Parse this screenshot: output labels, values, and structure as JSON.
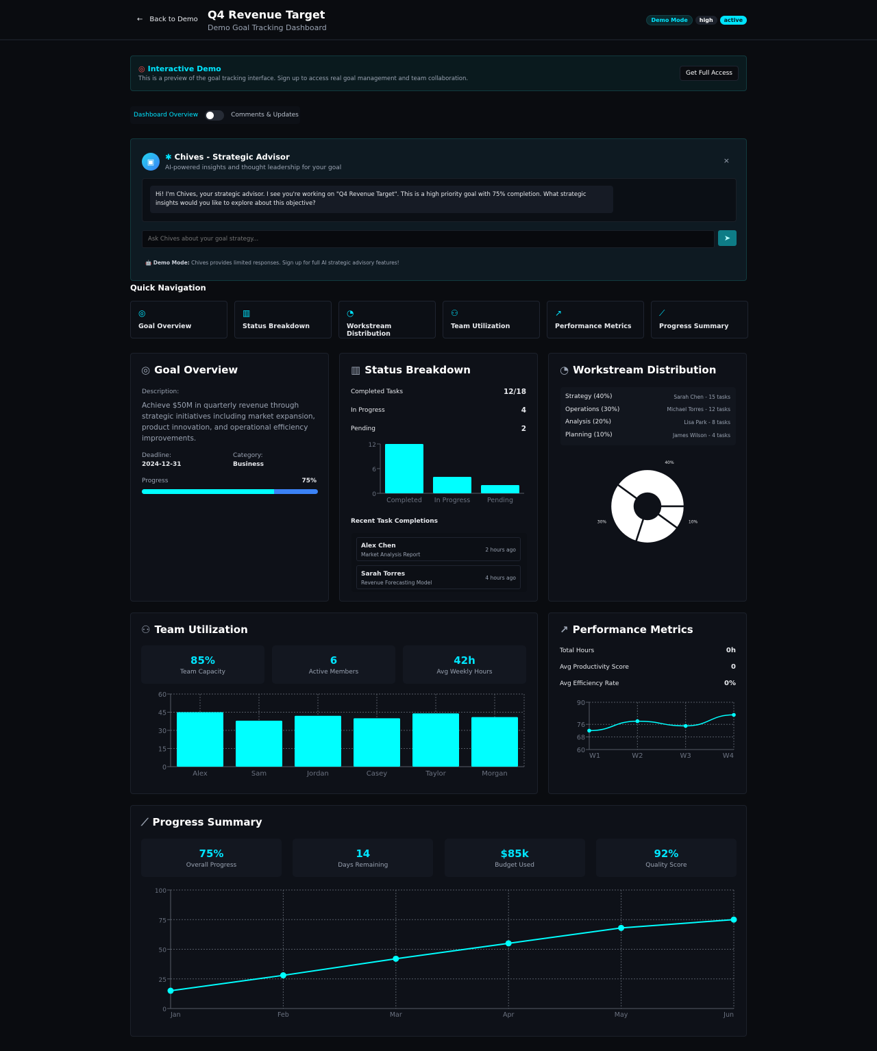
{
  "header": {
    "back_label": "Back to Demo",
    "title": "Q4 Revenue Target",
    "subtitle": "Demo Goal Tracking Dashboard",
    "badges": [
      "Demo Mode",
      "high",
      "active"
    ]
  },
  "banner": {
    "title": "Interactive Demo",
    "text": "This is a preview of the goal tracking interface. Sign up to access real goal management and team collaboration.",
    "button": "Get Full Access"
  },
  "view_toggle": {
    "left": "Dashboard Overview",
    "right": "Comments & Updates",
    "state": "off"
  },
  "advisor": {
    "title": "Chives - Strategic Advisor",
    "subtitle": "AI-powered insights and thought leadership for your goal",
    "message": "Hi! I'm Chives, your strategic advisor. I see you're working on \"Q4 Revenue Target\". This is a high priority goal with 75% completion. What strategic insights would you like to explore about this objective?",
    "input_placeholder": "Ask Chives about your goal strategy...",
    "note_bold": "Demo Mode:",
    "note": "Chives provides limited responses. Sign up for full AI strategic advisory features!"
  },
  "quick_nav": {
    "title": "Quick Navigation",
    "items": [
      {
        "label": "Goal Overview",
        "icon": "target-icon"
      },
      {
        "label": "Status Breakdown",
        "icon": "bar-chart-icon"
      },
      {
        "label": "Workstream Distribution",
        "icon": "pie-chart-icon"
      },
      {
        "label": "Team Utilization",
        "icon": "users-icon"
      },
      {
        "label": "Performance Metrics",
        "icon": "trending-up-icon"
      },
      {
        "label": "Progress Summary",
        "icon": "line-chart-icon"
      }
    ]
  },
  "goal": {
    "title": "Goal Overview",
    "desc_label": "Description:",
    "description": "Achieve $50M in quarterly revenue through strategic initiatives including market expansion, product innovation, and operational efficiency improvements.",
    "deadline_label": "Deadline:",
    "deadline": "2024-12-31",
    "category_label": "Category:",
    "category": "Business",
    "progress_label": "Progress",
    "progress_text": "75%",
    "progress": 75
  },
  "status": {
    "title": "Status Breakdown",
    "rows": [
      {
        "label": "Completed Tasks",
        "value": "12/18"
      },
      {
        "label": "In Progress",
        "value": "4"
      },
      {
        "label": "Pending",
        "value": "2"
      }
    ],
    "recent_title": "Recent Task Completions",
    "recent": [
      {
        "name": "Alex Chen",
        "task": "Market Analysis Report",
        "time": "2 hours ago"
      },
      {
        "name": "Sarah Torres",
        "task": "Revenue Forecasting Model",
        "time": "4 hours ago"
      }
    ]
  },
  "workstream": {
    "title": "Workstream Distribution",
    "rows": [
      {
        "label": "Strategy (40%)",
        "owner": "Sarah Chen - 15 tasks"
      },
      {
        "label": "Operations (30%)",
        "owner": "Michael Torres - 12 tasks"
      },
      {
        "label": "Analysis (20%)",
        "owner": "Lisa Park - 8 tasks"
      },
      {
        "label": "Planning (10%)",
        "owner": "James Wilson - 4 tasks"
      }
    ]
  },
  "team": {
    "title": "Team Utilization",
    "stats": [
      {
        "value": "85%",
        "label": "Team Capacity"
      },
      {
        "value": "6",
        "label": "Active Members"
      },
      {
        "value": "42h",
        "label": "Avg Weekly Hours"
      }
    ]
  },
  "performance": {
    "title": "Performance Metrics",
    "rows": [
      {
        "label": "Total Hours",
        "value": "0h"
      },
      {
        "label": "Avg Productivity Score",
        "value": "0"
      },
      {
        "label": "Avg Efficiency Rate",
        "value": "0%"
      }
    ]
  },
  "progress_summary": {
    "title": "Progress Summary",
    "stats": [
      {
        "value": "75%",
        "label": "Overall Progress"
      },
      {
        "value": "14",
        "label": "Days Remaining"
      },
      {
        "value": "$85k",
        "label": "Budget Used"
      },
      {
        "value": "92%",
        "label": "Quality Score"
      }
    ]
  },
  "colors": {
    "accent": "#00ffff",
    "progress_track": "#3b82f6",
    "background": "#0a0c10"
  },
  "chart_data": [
    {
      "id": "status",
      "type": "bar",
      "categories": [
        "Completed",
        "In Progress",
        "Pending"
      ],
      "values": [
        12,
        4,
        2
      ],
      "ylim": [
        0,
        12
      ],
      "yticks": [
        0,
        6,
        12
      ],
      "grid": false
    },
    {
      "id": "workstream",
      "type": "pie",
      "categories": [
        "Strategy",
        "Operations",
        "Analysis",
        "Planning"
      ],
      "values": [
        40,
        30,
        20,
        10
      ],
      "data_labels": [
        "40%",
        "30%",
        "",
        "10%"
      ],
      "donut": true
    },
    {
      "id": "team",
      "type": "bar",
      "categories": [
        "Alex",
        "Sam",
        "Jordan",
        "Casey",
        "Taylor",
        "Morgan"
      ],
      "values": [
        45,
        38,
        42,
        40,
        44,
        41
      ],
      "ylim": [
        0,
        60
      ],
      "yticks": [
        0,
        15,
        30,
        45,
        60
      ],
      "grid": true
    },
    {
      "id": "performance",
      "type": "line",
      "x": [
        "W1",
        "W2",
        "W3",
        "W4"
      ],
      "values": [
        72,
        78,
        75,
        82
      ],
      "ylim": [
        60,
        90
      ],
      "yticks": [
        60,
        68,
        76,
        90
      ],
      "grid": true
    },
    {
      "id": "progress",
      "type": "line",
      "x": [
        "Jan",
        "Feb",
        "Mar",
        "Apr",
        "May",
        "Jun"
      ],
      "values": [
        15,
        28,
        42,
        55,
        68,
        75
      ],
      "ylim": [
        0,
        100
      ],
      "yticks": [
        0,
        25,
        50,
        75,
        100
      ],
      "grid": true
    }
  ]
}
